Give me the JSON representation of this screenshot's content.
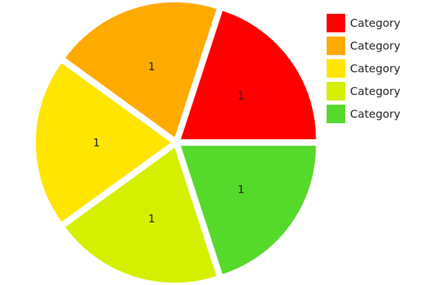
{
  "chart_data": {
    "type": "pie",
    "title": "",
    "categories": [
      "Category",
      "Category",
      "Category",
      "Category",
      "Category"
    ],
    "values": [
      1,
      1,
      1,
      1,
      1
    ],
    "data_labels": [
      "1",
      "1",
      "1",
      "1",
      "1"
    ],
    "colors": [
      "#ff0000",
      "#ffaa00",
      "#ffe500",
      "#d4f000",
      "#55d92b"
    ],
    "exploded": true,
    "legend": "right"
  }
}
